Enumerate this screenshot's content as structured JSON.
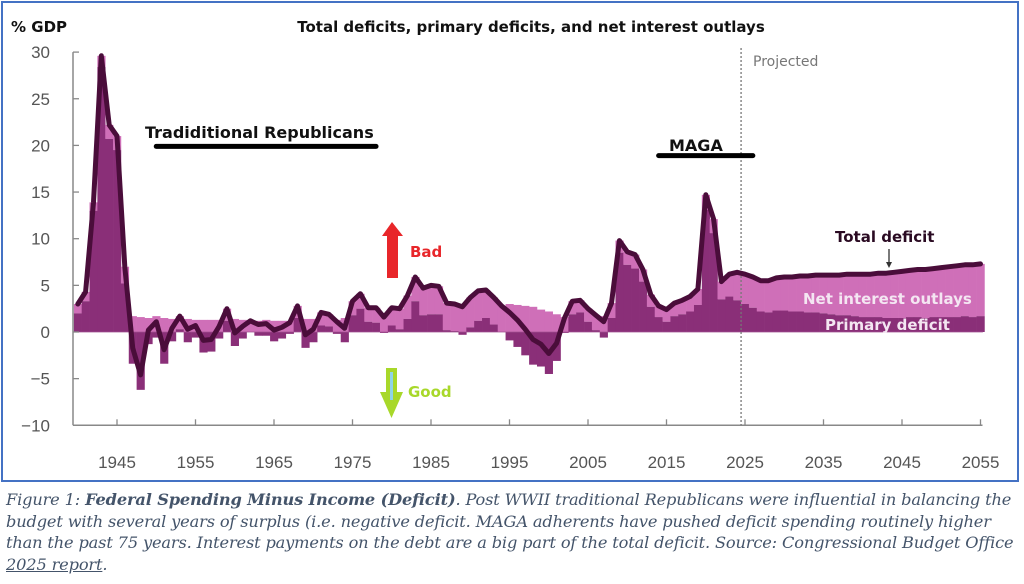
{
  "chart_data": {
    "type": "area",
    "title": "Total deficits, primary deficits, and net interest outlays",
    "ylabel": "% GDP",
    "xlabel": "",
    "ylim": [
      -10,
      30
    ],
    "xlim": [
      1939.5,
      2055
    ],
    "yticks": [
      30,
      25,
      20,
      15,
      10,
      5,
      0,
      -5,
      -10
    ],
    "xticks": [
      1945,
      1955,
      1965,
      1975,
      1985,
      1995,
      2005,
      2015,
      2025,
      2035,
      2045,
      2055
    ],
    "projection_start": 2024.5,
    "projection_label": "Projected",
    "grid": false,
    "series_labels": {
      "total": "Total deficit",
      "interest": "Net interest outlays",
      "primary": "Primary deficit"
    },
    "colors": {
      "total_line": "#4a0d3a",
      "interest_area": "#cf6fb8",
      "primary_area": "#8a2f78",
      "axis": "#888888"
    },
    "years": [
      1940,
      1941,
      1942,
      1943,
      1944,
      1945,
      1946,
      1947,
      1948,
      1949,
      1950,
      1951,
      1952,
      1953,
      1954,
      1955,
      1956,
      1957,
      1958,
      1959,
      1960,
      1961,
      1962,
      1963,
      1964,
      1965,
      1966,
      1967,
      1968,
      1969,
      1970,
      1971,
      1972,
      1973,
      1974,
      1975,
      1976,
      1977,
      1978,
      1979,
      1980,
      1981,
      1982,
      1983,
      1984,
      1985,
      1986,
      1987,
      1988,
      1989,
      1990,
      1991,
      1992,
      1993,
      1994,
      1995,
      1996,
      1997,
      1998,
      1999,
      2000,
      2001,
      2002,
      2003,
      2004,
      2005,
      2006,
      2007,
      2008,
      2009,
      2010,
      2011,
      2012,
      2013,
      2014,
      2015,
      2016,
      2017,
      2018,
      2019,
      2020,
      2021,
      2022,
      2023,
      2024,
      2025,
      2026,
      2027,
      2028,
      2029,
      2030,
      2031,
      2032,
      2033,
      2034,
      2035,
      2036,
      2037,
      2038,
      2039,
      2040,
      2041,
      2042,
      2043,
      2044,
      2045,
      2046,
      2047,
      2048,
      2049,
      2050,
      2051,
      2052,
      2053,
      2054,
      2055
    ],
    "total_deficit": [
      3.0,
      4.3,
      13.9,
      29.6,
      22.2,
      21.0,
      7.0,
      -1.7,
      -4.6,
      0.2,
      1.1,
      -1.9,
      0.4,
      1.7,
      0.3,
      0.7,
      -0.9,
      -0.8,
      0.6,
      2.5,
      -0.1,
      0.6,
      1.2,
      0.8,
      0.9,
      0.2,
      0.5,
      1.0,
      2.8,
      -0.3,
      0.3,
      2.1,
      1.9,
      1.1,
      0.4,
      3.3,
      4.1,
      2.6,
      2.6,
      1.6,
      2.6,
      2.5,
      3.9,
      5.9,
      4.7,
      5.0,
      4.9,
      3.1,
      3.0,
      2.7,
      3.7,
      4.4,
      4.5,
      3.7,
      2.8,
      2.1,
      1.3,
      0.3,
      -0.8,
      -1.3,
      -2.3,
      -1.2,
      1.5,
      3.3,
      3.4,
      2.5,
      1.8,
      1.1,
      3.1,
      9.8,
      8.6,
      8.3,
      6.7,
      4.0,
      2.8,
      2.4,
      3.1,
      3.4,
      3.8,
      4.6,
      14.7,
      12.1,
      5.4,
      6.2,
      6.4,
      6.2,
      5.9,
      5.5,
      5.5,
      5.8,
      5.9,
      5.9,
      6.0,
      6.0,
      6.1,
      6.1,
      6.1,
      6.1,
      6.2,
      6.2,
      6.2,
      6.2,
      6.3,
      6.3,
      6.4,
      6.5,
      6.6,
      6.7,
      6.7,
      6.8,
      6.9,
      7.0,
      7.1,
      7.2,
      7.2,
      7.3
    ],
    "net_interest": [
      1.0,
      1.0,
      0.9,
      1.2,
      1.5,
      1.5,
      1.8,
      1.7,
      1.6,
      1.5,
      1.7,
      1.5,
      1.4,
      1.4,
      1.4,
      1.3,
      1.3,
      1.3,
      1.3,
      1.3,
      1.4,
      1.3,
      1.2,
      1.2,
      1.3,
      1.2,
      1.2,
      1.2,
      1.3,
      1.4,
      1.4,
      1.4,
      1.3,
      1.3,
      1.5,
      1.5,
      1.6,
      1.5,
      1.6,
      1.7,
      1.9,
      2.2,
      2.5,
      2.6,
      2.9,
      3.1,
      3.0,
      2.9,
      2.9,
      3.0,
      3.2,
      3.2,
      3.0,
      2.9,
      2.8,
      3.0,
      2.9,
      2.8,
      2.7,
      2.4,
      2.2,
      1.9,
      1.6,
      1.4,
      1.3,
      1.4,
      1.6,
      1.7,
      1.6,
      1.3,
      1.4,
      1.5,
      1.3,
      1.3,
      1.2,
      1.3,
      1.4,
      1.5,
      1.6,
      1.7,
      1.6,
      1.5,
      1.9,
      2.4,
      3.0,
      3.2,
      3.3,
      3.3,
      3.4,
      3.5,
      3.6,
      3.7,
      3.8,
      3.9,
      4.0,
      4.1,
      4.2,
      4.3,
      4.4,
      4.5,
      4.6,
      4.6,
      4.7,
      4.8,
      4.9,
      5.0,
      5.0,
      5.1,
      5.2,
      5.2,
      5.3,
      5.4,
      5.5,
      5.5,
      5.6,
      5.6
    ],
    "primary_deficit": [
      2.0,
      3.3,
      13.0,
      28.4,
      20.7,
      19.5,
      5.2,
      -3.4,
      -6.2,
      -1.3,
      -0.6,
      -3.4,
      -1.0,
      0.3,
      -1.1,
      -0.6,
      -2.2,
      -2.1,
      -0.7,
      1.2,
      -1.5,
      -0.7,
      0.0,
      -0.4,
      -0.4,
      -1.0,
      -0.7,
      -0.2,
      1.5,
      -1.7,
      -1.1,
      0.7,
      0.6,
      -0.2,
      -1.1,
      1.8,
      2.5,
      1.1,
      1.0,
      -0.1,
      0.7,
      0.3,
      1.4,
      3.3,
      1.8,
      1.9,
      1.9,
      0.2,
      0.1,
      -0.3,
      0.5,
      1.2,
      1.5,
      0.8,
      0.0,
      -0.9,
      -1.6,
      -2.5,
      -3.5,
      -3.7,
      -4.5,
      -3.1,
      -0.1,
      1.9,
      2.1,
      1.1,
      0.2,
      -0.6,
      1.5,
      8.5,
      7.2,
      6.8,
      5.4,
      2.7,
      1.6,
      1.1,
      1.7,
      1.9,
      2.2,
      2.9,
      13.1,
      10.6,
      3.5,
      3.8,
      3.4,
      3.0,
      2.6,
      2.2,
      2.1,
      2.3,
      2.3,
      2.2,
      2.2,
      2.1,
      2.1,
      2.0,
      1.9,
      1.8,
      1.8,
      1.7,
      1.6,
      1.6,
      1.6,
      1.5,
      1.5,
      1.5,
      1.6,
      1.6,
      1.5,
      1.6,
      1.6,
      1.6,
      1.6,
      1.7,
      1.6,
      1.7
    ],
    "annotations": [
      {
        "text": "Tradiditional Republicans",
        "from_year": 1950,
        "to_year": 1978,
        "level": 19.9
      },
      {
        "text": "MAGA",
        "from_year": 2014,
        "to_year": 2026,
        "level": 18.9
      },
      {
        "text": "Bad",
        "arrow": "up",
        "color": "#e8262a"
      },
      {
        "text": "Good",
        "arrow": "down",
        "color": "#a8d82a"
      }
    ]
  },
  "caption": {
    "figure_label": "Figure 1: ",
    "bold_title": "Federal Spending Minus Income (Deficit)",
    "body": ". Post WWII traditional Republicans were influential in balancing the budget with several years of surplus (i.e. negative deficit.  MAGA adherents have pushed deficit spending routinely higher than the past 75 years.  Interest payments on the debt are a big part of the total deficit.  Source: Congressional Budget Office ",
    "link_text": "2025 report",
    "end": "."
  }
}
